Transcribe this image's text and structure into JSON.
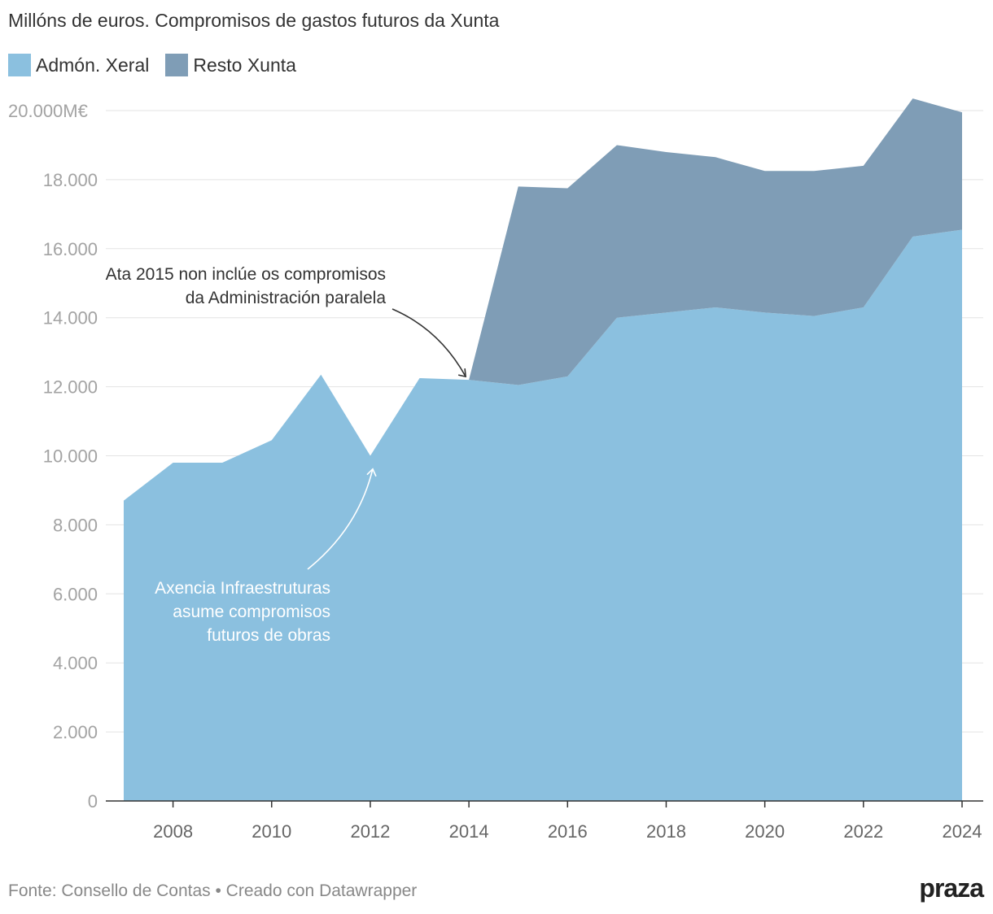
{
  "title": "Millóns de euros. Compromisos de gastos futuros da Xunta",
  "legend": [
    {
      "label": "Admón. Xeral",
      "color": "#8bc0df"
    },
    {
      "label": "Resto Xunta",
      "color": "#7f9db6"
    }
  ],
  "chart_data": {
    "type": "area",
    "stacked": true,
    "x": [
      2007,
      2008,
      2009,
      2010,
      2011,
      2012,
      2013,
      2014,
      2015,
      2016,
      2017,
      2018,
      2019,
      2020,
      2021,
      2022,
      2023,
      2024
    ],
    "series": [
      {
        "name": "Admón. Xeral",
        "values": [
          8700,
          9800,
          9800,
          10450,
          12350,
          10000,
          12250,
          12200,
          12050,
          12300,
          14000,
          14150,
          14300,
          14150,
          14050,
          14300,
          16350,
          16550
        ]
      },
      {
        "name": "Resto Xunta",
        "values": [
          0,
          0,
          0,
          0,
          0,
          0,
          0,
          0,
          5750,
          5450,
          5000,
          4650,
          4350,
          4100,
          4200,
          4100,
          4000,
          3400
        ]
      }
    ],
    "xticks": [
      2008,
      2010,
      2012,
      2014,
      2016,
      2018,
      2020,
      2022,
      2024
    ],
    "yticks": [
      0,
      2000,
      4000,
      6000,
      8000,
      10000,
      12000,
      14000,
      16000,
      18000,
      20000
    ],
    "ytick_labels": [
      "0",
      "2.000",
      "4.000",
      "6.000",
      "8.000",
      "10.000",
      "12.000",
      "14.000",
      "16.000",
      "18.000",
      "20.000M€"
    ],
    "ylim": [
      0,
      20000
    ],
    "xlim": [
      2007,
      2024
    ],
    "annotations": [
      {
        "lines": [
          "Ata 2015 non inclúe os compromisos",
          "da Administración paralela"
        ],
        "target_x": 2014,
        "target_y": 12200,
        "color": "#333333"
      },
      {
        "lines": [
          "Axencia Infraestruturas",
          "asume compromisos",
          "futuros de obras"
        ],
        "target_x": 2012,
        "target_y": 9900,
        "color": "#ffffff"
      }
    ]
  },
  "footer": "Fonte: Consello de Contas • Creado con Datawrapper",
  "logo": "praza"
}
